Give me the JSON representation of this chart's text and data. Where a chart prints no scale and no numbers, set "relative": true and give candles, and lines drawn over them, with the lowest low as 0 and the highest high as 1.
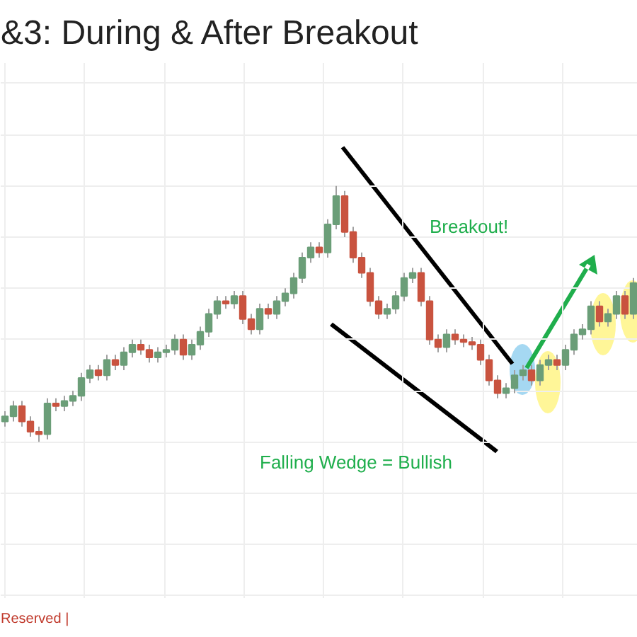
{
  "chart_data": {
    "type": "candlestick",
    "title": "&3: During & After Breakout",
    "relative": true,
    "grid": true,
    "annotations": [
      "Breakout!",
      "Falling Wedge = Bullish",
      "Reserved |"
    ],
    "categories": [
      null,
      null,
      null,
      null,
      null,
      null,
      null,
      null,
      null,
      null,
      null,
      null,
      null,
      null,
      null,
      null,
      null,
      null,
      null,
      null,
      null,
      null,
      null,
      null,
      null,
      null,
      null,
      null,
      null,
      null,
      null,
      null,
      null,
      null,
      null,
      null,
      null,
      null,
      null,
      null,
      null,
      null,
      null,
      null,
      null,
      null,
      null,
      null,
      null,
      null,
      null,
      null,
      null,
      null,
      null,
      null,
      null,
      null,
      null,
      null,
      null,
      null,
      null,
      null,
      null,
      null,
      null,
      null,
      null,
      null,
      null,
      null,
      null,
      null,
      null
    ],
    "ohlc": [
      [
        0.08,
        0.12,
        0.06,
        0.1
      ],
      [
        0.1,
        0.16,
        0.08,
        0.14
      ],
      [
        0.14,
        0.16,
        0.06,
        0.08
      ],
      [
        0.08,
        0.1,
        0.02,
        0.04
      ],
      [
        0.04,
        0.06,
        0.0,
        0.03
      ],
      [
        0.03,
        0.17,
        0.01,
        0.15
      ],
      [
        0.15,
        0.17,
        0.12,
        0.14
      ],
      [
        0.14,
        0.18,
        0.12,
        0.16
      ],
      [
        0.16,
        0.2,
        0.14,
        0.18
      ],
      [
        0.18,
        0.27,
        0.16,
        0.25
      ],
      [
        0.25,
        0.3,
        0.23,
        0.28
      ],
      [
        0.28,
        0.3,
        0.24,
        0.26
      ],
      [
        0.26,
        0.34,
        0.24,
        0.32
      ],
      [
        0.32,
        0.34,
        0.28,
        0.3
      ],
      [
        0.3,
        0.37,
        0.28,
        0.35
      ],
      [
        0.35,
        0.4,
        0.33,
        0.38
      ],
      [
        0.38,
        0.4,
        0.34,
        0.36
      ],
      [
        0.36,
        0.38,
        0.31,
        0.33
      ],
      [
        0.33,
        0.37,
        0.31,
        0.35
      ],
      [
        0.35,
        0.38,
        0.33,
        0.36
      ],
      [
        0.36,
        0.42,
        0.34,
        0.4
      ],
      [
        0.4,
        0.42,
        0.32,
        0.34
      ],
      [
        0.34,
        0.4,
        0.32,
        0.38
      ],
      [
        0.38,
        0.45,
        0.36,
        0.43
      ],
      [
        0.43,
        0.52,
        0.41,
        0.5
      ],
      [
        0.5,
        0.57,
        0.48,
        0.55
      ],
      [
        0.55,
        0.57,
        0.52,
        0.54
      ],
      [
        0.54,
        0.59,
        0.52,
        0.57
      ],
      [
        0.57,
        0.59,
        0.46,
        0.48
      ],
      [
        0.48,
        0.5,
        0.42,
        0.44
      ],
      [
        0.44,
        0.54,
        0.42,
        0.52
      ],
      [
        0.52,
        0.54,
        0.48,
        0.5
      ],
      [
        0.5,
        0.57,
        0.48,
        0.55
      ],
      [
        0.55,
        0.6,
        0.53,
        0.58
      ],
      [
        0.58,
        0.66,
        0.56,
        0.64
      ],
      [
        0.64,
        0.74,
        0.62,
        0.72
      ],
      [
        0.72,
        0.78,
        0.7,
        0.76
      ],
      [
        0.76,
        0.78,
        0.72,
        0.74
      ],
      [
        0.74,
        0.87,
        0.72,
        0.85
      ],
      [
        0.85,
        1.0,
        0.83,
        0.96
      ],
      [
        0.96,
        0.98,
        0.8,
        0.82
      ],
      [
        0.82,
        0.84,
        0.7,
        0.72
      ],
      [
        0.72,
        0.74,
        0.64,
        0.66
      ],
      [
        0.66,
        0.68,
        0.53,
        0.55
      ],
      [
        0.55,
        0.57,
        0.48,
        0.5
      ],
      [
        0.5,
        0.54,
        0.48,
        0.52
      ],
      [
        0.52,
        0.59,
        0.5,
        0.57
      ],
      [
        0.57,
        0.66,
        0.55,
        0.64
      ],
      [
        0.64,
        0.68,
        0.62,
        0.66
      ],
      [
        0.66,
        0.68,
        0.53,
        0.55
      ],
      [
        0.55,
        0.57,
        0.38,
        0.4
      ],
      [
        0.4,
        0.42,
        0.35,
        0.37
      ],
      [
        0.37,
        0.44,
        0.35,
        0.42
      ],
      [
        0.42,
        0.44,
        0.38,
        0.4
      ],
      [
        0.4,
        0.42,
        0.37,
        0.39
      ],
      [
        0.39,
        0.41,
        0.36,
        0.38
      ],
      [
        0.38,
        0.4,
        0.3,
        0.32
      ],
      [
        0.32,
        0.34,
        0.22,
        0.24
      ],
      [
        0.24,
        0.26,
        0.17,
        0.19
      ],
      [
        0.19,
        0.23,
        0.17,
        0.21
      ],
      [
        0.21,
        0.28,
        0.19,
        0.26
      ],
      [
        0.26,
        0.3,
        0.24,
        0.28
      ],
      [
        0.28,
        0.3,
        0.22,
        0.24
      ],
      [
        0.24,
        0.32,
        0.22,
        0.3
      ],
      [
        0.3,
        0.34,
        0.28,
        0.32
      ],
      [
        0.32,
        0.34,
        0.28,
        0.3
      ],
      [
        0.3,
        0.38,
        0.28,
        0.36
      ],
      [
        0.36,
        0.44,
        0.34,
        0.42
      ],
      [
        0.42,
        0.46,
        0.4,
        0.44
      ],
      [
        0.44,
        0.55,
        0.42,
        0.53
      ],
      [
        0.53,
        0.55,
        0.45,
        0.47
      ],
      [
        0.47,
        0.52,
        0.45,
        0.5
      ],
      [
        0.5,
        0.59,
        0.48,
        0.57
      ],
      [
        0.57,
        0.59,
        0.48,
        0.5
      ],
      [
        0.5,
        0.64,
        0.48,
        0.62
      ]
    ]
  }
}
